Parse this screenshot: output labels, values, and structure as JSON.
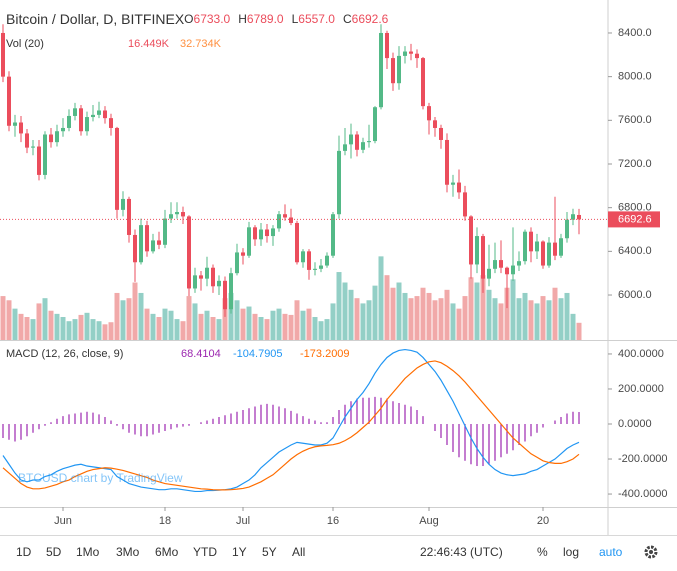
{
  "chart_data": {
    "type": "candlestick",
    "title": "Bitcoin / Dollar, D, BITFINEX",
    "ohlc_legend": [
      {
        "key": "O",
        "value": "6733.0"
      },
      {
        "key": "H",
        "value": "6789.0"
      },
      {
        "key": "L",
        "value": "6557.0"
      },
      {
        "key": "C",
        "value": "6692.6"
      }
    ],
    "last_price_label": "6692.6",
    "last_price": 6692.6,
    "colors": {
      "up": "#53b987",
      "down": "#eb4d5c",
      "vol_up": "#93cfc6",
      "vol_down": "#f1a9a9"
    },
    "ylim": [
      5588,
      8702
    ],
    "yticks": [
      {
        "value": 6000,
        "label": "6000.0"
      },
      {
        "value": 6400,
        "label": "6400.0"
      },
      {
        "value": 6800,
        "label": "6800.0"
      },
      {
        "value": 7200,
        "label": "7200.0"
      },
      {
        "value": 7600,
        "label": "7600.0"
      },
      {
        "value": 8000,
        "label": "8000.0"
      },
      {
        "value": 8400,
        "label": "8400.0"
      }
    ],
    "xticks": [
      {
        "value": 10,
        "label": "Jun"
      },
      {
        "value": 27,
        "label": "18"
      },
      {
        "value": 40,
        "label": "Jul"
      },
      {
        "value": 55,
        "label": "16"
      },
      {
        "value": 71,
        "label": "Aug"
      },
      {
        "value": 90,
        "label": "20"
      }
    ],
    "ohlc": [
      [
        8400,
        8480,
        7950,
        8000
      ],
      [
        8000,
        8050,
        7500,
        7550
      ],
      [
        7550,
        7650,
        7450,
        7580
      ],
      [
        7580,
        7640,
        7400,
        7480
      ],
      [
        7480,
        7520,
        7300,
        7350
      ],
      [
        7350,
        7420,
        7280,
        7360
      ],
      [
        7360,
        7420,
        7050,
        7100
      ],
      [
        7100,
        7500,
        7060,
        7470
      ],
      [
        7470,
        7530,
        7350,
        7400
      ],
      [
        7400,
        7560,
        7360,
        7500
      ],
      [
        7500,
        7620,
        7450,
        7530
      ],
      [
        7530,
        7700,
        7500,
        7640
      ],
      [
        7640,
        7760,
        7600,
        7710
      ],
      [
        7710,
        7740,
        7460,
        7500
      ],
      [
        7500,
        7680,
        7460,
        7630
      ],
      [
        7630,
        7740,
        7590,
        7650
      ],
      [
        7650,
        7770,
        7620,
        7690
      ],
      [
        7690,
        7730,
        7570,
        7620
      ],
      [
        7620,
        7660,
        7460,
        7530
      ],
      [
        7530,
        7540,
        6700,
        6780
      ],
      [
        6780,
        6950,
        6720,
        6880
      ],
      [
        6880,
        6900,
        6480,
        6550
      ],
      [
        6550,
        6600,
        6120,
        6300
      ],
      [
        6300,
        6700,
        6280,
        6640
      ],
      [
        6640,
        6680,
        6350,
        6400
      ],
      [
        6400,
        6560,
        6380,
        6500
      ],
      [
        6500,
        6580,
        6420,
        6460
      ],
      [
        6460,
        6780,
        6430,
        6700
      ],
      [
        6700,
        6850,
        6660,
        6740
      ],
      [
        6740,
        6850,
        6700,
        6760
      ],
      [
        6760,
        6810,
        6650,
        6720
      ],
      [
        6720,
        6730,
        5990,
        6060
      ],
      [
        6060,
        6250,
        6020,
        6180
      ],
      [
        6180,
        6220,
        6040,
        6150
      ],
      [
        6150,
        6350,
        6080,
        6250
      ],
      [
        6250,
        6280,
        6020,
        6080
      ],
      [
        6080,
        6180,
        6000,
        6130
      ],
      [
        6130,
        6170,
        5800,
        5870
      ],
      [
        5870,
        6250,
        5830,
        6200
      ],
      [
        6200,
        6470,
        6180,
        6390
      ],
      [
        6390,
        6430,
        6280,
        6360
      ],
      [
        6360,
        6670,
        6340,
        6620
      ],
      [
        6620,
        6640,
        6450,
        6510
      ],
      [
        6510,
        6660,
        6450,
        6600
      ],
      [
        6600,
        6650,
        6480,
        6540
      ],
      [
        6540,
        6640,
        6450,
        6610
      ],
      [
        6610,
        6770,
        6580,
        6740
      ],
      [
        6740,
        6830,
        6680,
        6710
      ],
      [
        6710,
        6790,
        6640,
        6660
      ],
      [
        6660,
        6680,
        6280,
        6300
      ],
      [
        6300,
        6420,
        6250,
        6400
      ],
      [
        6400,
        6420,
        6140,
        6230
      ],
      [
        6230,
        6300,
        6180,
        6240
      ],
      [
        6240,
        6330,
        6210,
        6270
      ],
      [
        6270,
        6390,
        6250,
        6360
      ],
      [
        6360,
        6760,
        6340,
        6740
      ],
      [
        6740,
        7460,
        6700,
        7320
      ],
      [
        7320,
        7530,
        7280,
        7380
      ],
      [
        7380,
        7570,
        7250,
        7470
      ],
      [
        7470,
        7500,
        7270,
        7330
      ],
      [
        7330,
        7440,
        7300,
        7400
      ],
      [
        7400,
        7560,
        7350,
        7410
      ],
      [
        7410,
        7730,
        7390,
        7720
      ],
      [
        7720,
        8480,
        7700,
        8400
      ],
      [
        8400,
        8420,
        8070,
        8170
      ],
      [
        8170,
        8220,
        7870,
        7940
      ],
      [
        7940,
        8280,
        7880,
        8190
      ],
      [
        8190,
        8280,
        8120,
        8230
      ],
      [
        8230,
        8300,
        8150,
        8210
      ],
      [
        8210,
        8250,
        8080,
        8170
      ],
      [
        8170,
        8180,
        7700,
        7730
      ],
      [
        7730,
        7760,
        7470,
        7600
      ],
      [
        7600,
        7630,
        7450,
        7530
      ],
      [
        7530,
        7560,
        7340,
        7420
      ],
      [
        7420,
        7480,
        6940,
        7010
      ],
      [
        7010,
        7100,
        6900,
        7030
      ],
      [
        7030,
        7150,
        6880,
        6940
      ],
      [
        6940,
        7000,
        6680,
        6720
      ],
      [
        6720,
        6730,
        6150,
        6280
      ],
      [
        6280,
        6620,
        6200,
        6540
      ],
      [
        6540,
        6560,
        6020,
        6150
      ],
      [
        6150,
        6460,
        6080,
        6240
      ],
      [
        6240,
        6480,
        6200,
        6320
      ],
      [
        6320,
        6500,
        6200,
        6250
      ],
      [
        6250,
        6260,
        5880,
        6190
      ],
      [
        6190,
        6620,
        6130,
        6270
      ],
      [
        6270,
        6400,
        6220,
        6310
      ],
      [
        6310,
        6600,
        6280,
        6580
      ],
      [
        6580,
        6620,
        6300,
        6400
      ],
      [
        6400,
        6560,
        6330,
        6490
      ],
      [
        6490,
        6500,
        6240,
        6270
      ],
      [
        6270,
        6530,
        6250,
        6480
      ],
      [
        6480,
        6900,
        6320,
        6360
      ],
      [
        6360,
        6560,
        6340,
        6520
      ],
      [
        6520,
        6760,
        6480,
        6690
      ],
      [
        6690,
        6790,
        6640,
        6740
      ],
      [
        6733,
        6789,
        6557,
        6692.6
      ]
    ],
    "volume": {
      "label": "Vol (20)",
      "value_label": "16.449K",
      "ma_label": "32.734K",
      "ylim": [
        0,
        110
      ],
      "values": [
        42,
        38,
        30,
        25,
        22,
        20,
        35,
        40,
        28,
        25,
        22,
        18,
        20,
        24,
        26,
        20,
        18,
        15,
        17,
        45,
        38,
        40,
        55,
        45,
        30,
        25,
        22,
        30,
        28,
        20,
        18,
        42,
        35,
        25,
        28,
        22,
        20,
        40,
        45,
        38,
        30,
        32,
        25,
        22,
        20,
        28,
        30,
        25,
        24,
        38,
        28,
        30,
        22,
        18,
        20,
        35,
        65,
        55,
        48,
        40,
        35,
        38,
        52,
        80,
        62,
        50,
        55,
        45,
        40,
        42,
        50,
        45,
        38,
        40,
        48,
        35,
        30,
        42,
        60,
        55,
        62,
        48,
        40,
        35,
        50,
        58,
        40,
        45,
        38,
        35,
        42,
        38,
        50,
        40,
        45,
        25,
        16.449
      ]
    },
    "macd": {
      "label": "MACD (12, 26, close, 9)",
      "ylim": [
        -474,
        474
      ],
      "yticks": [
        {
          "value": 400,
          "label": "400.0000"
        },
        {
          "value": 200,
          "label": "200.0000"
        },
        {
          "value": 0,
          "label": "0.0000"
        },
        {
          "value": -200,
          "label": "-200.0000"
        },
        {
          "value": -400,
          "label": "-400.0000"
        }
      ],
      "histogram": {
        "label": "68.4104",
        "color": "#9c27b0",
        "values": [
          -80,
          -90,
          -100,
          -90,
          -70,
          -50,
          -30,
          -10,
          10,
          30,
          45,
          55,
          60,
          65,
          70,
          65,
          55,
          40,
          20,
          -10,
          -30,
          -50,
          -60,
          -70,
          -70,
          -60,
          -50,
          -40,
          -30,
          -20,
          -15,
          -10,
          0,
          10,
          20,
          30,
          40,
          50,
          60,
          70,
          80,
          90,
          100,
          110,
          115,
          110,
          100,
          90,
          75,
          60,
          45,
          30,
          20,
          10,
          10,
          40,
          80,
          110,
          130,
          145,
          150,
          150,
          155,
          150,
          145,
          130,
          120,
          110,
          100,
          80,
          45,
          0,
          -40,
          -80,
          -120,
          -160,
          -190,
          -210,
          -230,
          -240,
          -240,
          -230,
          -210,
          -190,
          -170,
          -150,
          -120,
          -100,
          -70,
          -50,
          -20,
          0,
          20,
          40,
          60,
          70,
          68.4104
        ]
      },
      "macd": {
        "label": "-104.7905",
        "color": "#2196f3",
        "values": [
          -180,
          -230,
          -280,
          -320,
          -330,
          -320,
          -320,
          -300,
          -290,
          -270,
          -255,
          -245,
          -235,
          -230,
          -240,
          -245,
          -250,
          -255,
          -260,
          -300,
          -320,
          -340,
          -350,
          -360,
          -365,
          -370,
          -375,
          -375,
          -370,
          -370,
          -375,
          -380,
          -385,
          -385,
          -380,
          -380,
          -378,
          -375,
          -370,
          -360,
          -340,
          -320,
          -290,
          -250,
          -220,
          -190,
          -160,
          -140,
          -120,
          -105,
          -110,
          -115,
          -120,
          -120,
          -110,
          -80,
          -20,
          40,
          90,
          140,
          180,
          230,
          290,
          340,
          380,
          405,
          420,
          425,
          420,
          410,
          380,
          340,
          300,
          250,
          190,
          130,
          60,
          -10,
          -80,
          -140,
          -190,
          -230,
          -260,
          -280,
          -290,
          -295,
          -290,
          -285,
          -270,
          -260,
          -240,
          -220,
          -200,
          -170,
          -140,
          -120,
          -104.7905
        ]
      },
      "signal": {
        "label": "-173.2009",
        "color": "#ff6d00",
        "values": [
          -250,
          -280,
          -310,
          -340,
          -360,
          -370,
          -370,
          -365,
          -355,
          -345,
          -330,
          -320,
          -300,
          -285,
          -270,
          -260,
          -255,
          -250,
          -252,
          -258,
          -265,
          -275,
          -285,
          -295,
          -305,
          -320,
          -330,
          -340,
          -345,
          -350,
          -355,
          -360,
          -365,
          -370,
          -372,
          -375,
          -376,
          -376,
          -375,
          -372,
          -368,
          -360,
          -345,
          -330,
          -310,
          -290,
          -260,
          -230,
          -200,
          -175,
          -155,
          -140,
          -130,
          -125,
          -122,
          -118,
          -110,
          -95,
          -75,
          -50,
          -20,
          10,
          50,
          90,
          140,
          180,
          220,
          260,
          290,
          320,
          340,
          355,
          360,
          350,
          330,
          305,
          275,
          240,
          200,
          160,
          120,
          80,
          40,
          0,
          -40,
          -80,
          -110,
          -140,
          -170,
          -190,
          -210,
          -220,
          -225,
          -225,
          -215,
          -200,
          -173.2009
        ]
      }
    },
    "watermark": "BTCUSD chart by TradingView"
  },
  "toolbar": {
    "ranges": [
      "1D",
      "5D",
      "1Mo",
      "3Mo",
      "6Mo",
      "YTD",
      "1Y",
      "5Y",
      "All"
    ],
    "time": "22:46:43 (UTC)",
    "percent": "%",
    "log": "log",
    "auto": "auto"
  }
}
